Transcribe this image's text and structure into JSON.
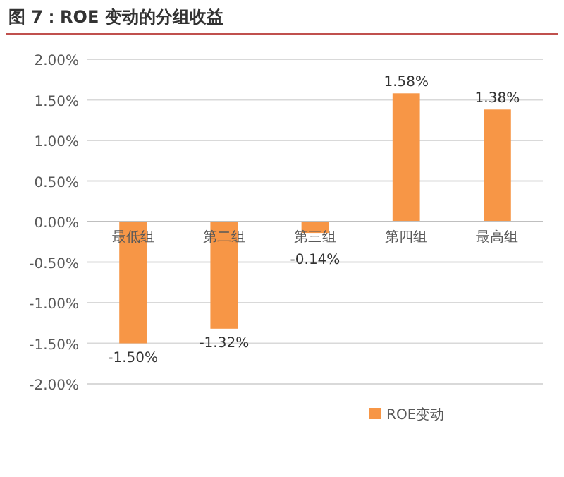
{
  "chart_data": {
    "type": "bar",
    "title": "图 7：ROE 变动的分组收益",
    "categories": [
      "最低组",
      "第二组",
      "第三组",
      "第四组",
      "最高组"
    ],
    "series": [
      {
        "name": "ROE变动",
        "color": "#f79646",
        "values": [
          -1.5,
          -1.32,
          -0.14,
          1.58,
          1.38
        ],
        "value_labels": [
          "-1.50%",
          "-1.32%",
          "-0.14%",
          "1.58%",
          "1.38%"
        ]
      }
    ],
    "ylim": [
      -2,
      2
    ],
    "yticks": [
      {
        "value": -2,
        "label": "-2.00%"
      },
      {
        "value": -1.5,
        "label": "-1.50%"
      },
      {
        "value": -1,
        "label": "-1.00%"
      },
      {
        "value": -0.5,
        "label": "-0.50%"
      },
      {
        "value": 0,
        "label": "0.00%"
      },
      {
        "value": 0.5,
        "label": "0.50%"
      },
      {
        "value": 1,
        "label": "1.00%"
      },
      {
        "value": 1.5,
        "label": "1.50%"
      },
      {
        "value": 2,
        "label": "2.00%"
      }
    ],
    "grid": "y",
    "legend": "bottom right"
  }
}
